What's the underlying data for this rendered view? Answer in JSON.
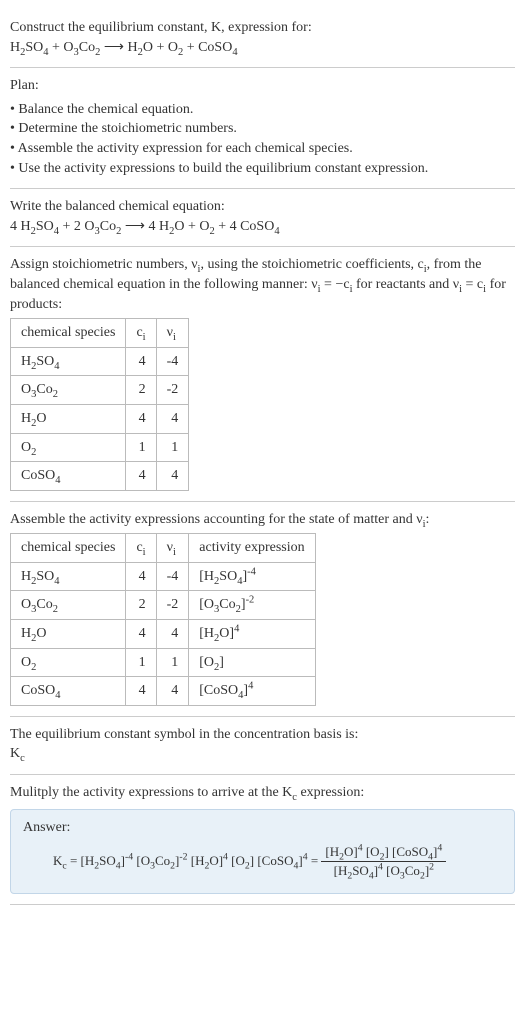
{
  "intro": {
    "line1": "Construct the equilibrium constant, K, expression for:",
    "equation_html": "H<sub>2</sub>SO<sub>4</sub> + O<sub>3</sub>Co<sub>2</sub> ⟶ H<sub>2</sub>O + O<sub>2</sub> + CoSO<sub>4</sub>"
  },
  "plan": {
    "title": "Plan:",
    "items": [
      "Balance the chemical equation.",
      "Determine the stoichiometric numbers.",
      "Assemble the activity expression for each chemical species.",
      "Use the activity expressions to build the equilibrium constant expression."
    ]
  },
  "balanced": {
    "title": "Write the balanced chemical equation:",
    "equation_html": "4 H<sub>2</sub>SO<sub>4</sub> + 2 O<sub>3</sub>Co<sub>2</sub> ⟶ 4 H<sub>2</sub>O + O<sub>2</sub> + 4 CoSO<sub>4</sub>"
  },
  "stoich": {
    "intro_html": "Assign stoichiometric numbers, ν<sub>i</sub>, using the stoichiometric coefficients, c<sub>i</sub>, from the balanced chemical equation in the following manner: ν<sub>i</sub> = −c<sub>i</sub> for reactants and ν<sub>i</sub> = c<sub>i</sub> for products:",
    "headers": {
      "species": "chemical species",
      "c": "c<sub>i</sub>",
      "v": "ν<sub>i</sub>"
    },
    "rows": [
      {
        "species_html": "H<sub>2</sub>SO<sub>4</sub>",
        "c": "4",
        "v": "-4"
      },
      {
        "species_html": "O<sub>3</sub>Co<sub>2</sub>",
        "c": "2",
        "v": "-2"
      },
      {
        "species_html": "H<sub>2</sub>O",
        "c": "4",
        "v": "4"
      },
      {
        "species_html": "O<sub>2</sub>",
        "c": "1",
        "v": "1"
      },
      {
        "species_html": "CoSO<sub>4</sub>",
        "c": "4",
        "v": "4"
      }
    ]
  },
  "activity": {
    "intro_html": "Assemble the activity expressions accounting for the state of matter and ν<sub>i</sub>:",
    "headers": {
      "species": "chemical species",
      "c": "c<sub>i</sub>",
      "v": "ν<sub>i</sub>",
      "expr": "activity expression"
    },
    "rows": [
      {
        "species_html": "H<sub>2</sub>SO<sub>4</sub>",
        "c": "4",
        "v": "-4",
        "expr_html": "[H<sub>2</sub>SO<sub>4</sub>]<sup>-4</sup>"
      },
      {
        "species_html": "O<sub>3</sub>Co<sub>2</sub>",
        "c": "2",
        "v": "-2",
        "expr_html": "[O<sub>3</sub>Co<sub>2</sub>]<sup>-2</sup>"
      },
      {
        "species_html": "H<sub>2</sub>O",
        "c": "4",
        "v": "4",
        "expr_html": "[H<sub>2</sub>O]<sup>4</sup>"
      },
      {
        "species_html": "O<sub>2</sub>",
        "c": "1",
        "v": "1",
        "expr_html": "[O<sub>2</sub>]"
      },
      {
        "species_html": "CoSO<sub>4</sub>",
        "c": "4",
        "v": "4",
        "expr_html": "[CoSO<sub>4</sub>]<sup>4</sup>"
      }
    ]
  },
  "symbol": {
    "line1": "The equilibrium constant symbol in the concentration basis is:",
    "symbol_html": "K<sub>c</sub>"
  },
  "final": {
    "intro_html": "Mulitply the activity expressions to arrive at the K<sub>c</sub> expression:",
    "answer_label": "Answer:",
    "lhs_html": "K<sub>c</sub> = [H<sub>2</sub>SO<sub>4</sub>]<sup>-4</sup> [O<sub>3</sub>Co<sub>2</sub>]<sup>-2</sup> [H<sub>2</sub>O]<sup>4</sup> [O<sub>2</sub>] [CoSO<sub>4</sub>]<sup>4</sup> = ",
    "frac_num_html": "[H<sub>2</sub>O]<sup>4</sup> [O<sub>2</sub>] [CoSO<sub>4</sub>]<sup>4</sup>",
    "frac_den_html": "[H<sub>2</sub>SO<sub>4</sub>]<sup>4</sup> [O<sub>3</sub>Co<sub>2</sub>]<sup>2</sup>"
  },
  "style": {
    "answer_bg": "#e8f1f8",
    "answer_border": "#c2d6e8",
    "table_border": "#bbbbbb",
    "text_color": "#333333"
  }
}
